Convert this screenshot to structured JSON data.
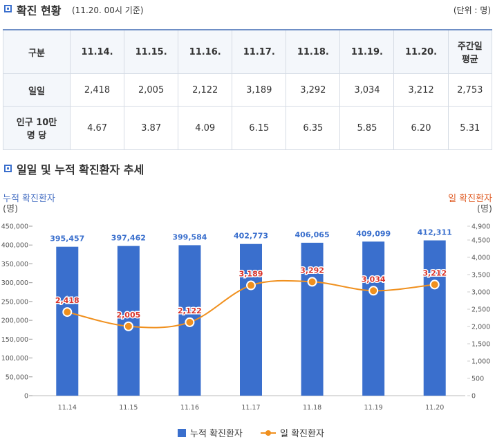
{
  "header": {
    "title": "확진 현황",
    "note": "(11.20. 00시 기준)",
    "unit": "(단위 : 명)"
  },
  "table": {
    "columns": [
      "구분",
      "11.14.",
      "11.15.",
      "11.16.",
      "11.17.",
      "11.18.",
      "11.19.",
      "11.20.",
      "주간일\n평균"
    ],
    "rows": [
      [
        "일일",
        "2,418",
        "2,005",
        "2,122",
        "3,189",
        "3,292",
        "3,034",
        "3,212",
        "2,753"
      ],
      [
        "인구 10만\n명 당",
        "4.67",
        "3.87",
        "4.09",
        "6.15",
        "6.35",
        "5.85",
        "6.20",
        "5.31"
      ]
    ]
  },
  "chart_data": {
    "type": "bar",
    "title": "일일 및 누적 확진환자 추세",
    "ylabel": "누적 확진환자",
    "yunit": "(명)",
    "y2label": "일 확진환자",
    "y2unit": "(명)",
    "categories": [
      "11.14",
      "11.15",
      "11.16",
      "11.17",
      "11.18",
      "11.19",
      "11.20"
    ],
    "ylim": [
      0,
      450000
    ],
    "yticks": [
      0,
      {
        "value": 50000,
        "label": "50,000"
      },
      {
        "value": 100000,
        "label": "100,000"
      },
      {
        "value": 150000,
        "label": "150,000"
      },
      {
        "value": 200000,
        "label": "200,000"
      },
      {
        "value": 250000,
        "label": "250,000"
      },
      {
        "value": 300000,
        "label": "300,000"
      },
      {
        "value": 350000,
        "label": "350,000"
      },
      {
        "value": 400000,
        "label": "400,000"
      },
      {
        "value": 450000,
        "label": "450,000"
      }
    ],
    "y2lim": [
      0,
      4900
    ],
    "y2ticks": [
      0,
      500,
      {
        "value": 1000,
        "label": "1,000"
      },
      {
        "value": 1500,
        "label": "1,500"
      },
      {
        "value": 2000,
        "label": "2,000"
      },
      {
        "value": 2500,
        "label": "2,500"
      },
      {
        "value": 3000,
        "label": "3,000"
      },
      {
        "value": 3500,
        "label": "3,500"
      },
      {
        "value": 4000,
        "label": "4,000"
      },
      {
        "value": 4500,
        "label": "4,500"
      },
      {
        "value": 4900,
        "label": "4,900"
      }
    ],
    "series": [
      {
        "name": "누적 확진환자",
        "type": "bar",
        "color": "#3a6fcd",
        "values": [
          395457,
          397462,
          399584,
          402773,
          406065,
          409099,
          412311
        ],
        "value_labels": [
          "395,457",
          "397,462",
          "399,584",
          "402,773",
          "406,065",
          "409,099",
          "412,311"
        ]
      },
      {
        "name": "일 확진환자",
        "type": "line",
        "axis": "y2",
        "color": "#f0901e",
        "values": [
          2418,
          2005,
          2122,
          3189,
          3292,
          3034,
          3212
        ],
        "value_labels": [
          "2,418",
          "2,005",
          "2,122",
          "3,189",
          "3,292",
          "3,034",
          "3,212"
        ]
      }
    ]
  }
}
